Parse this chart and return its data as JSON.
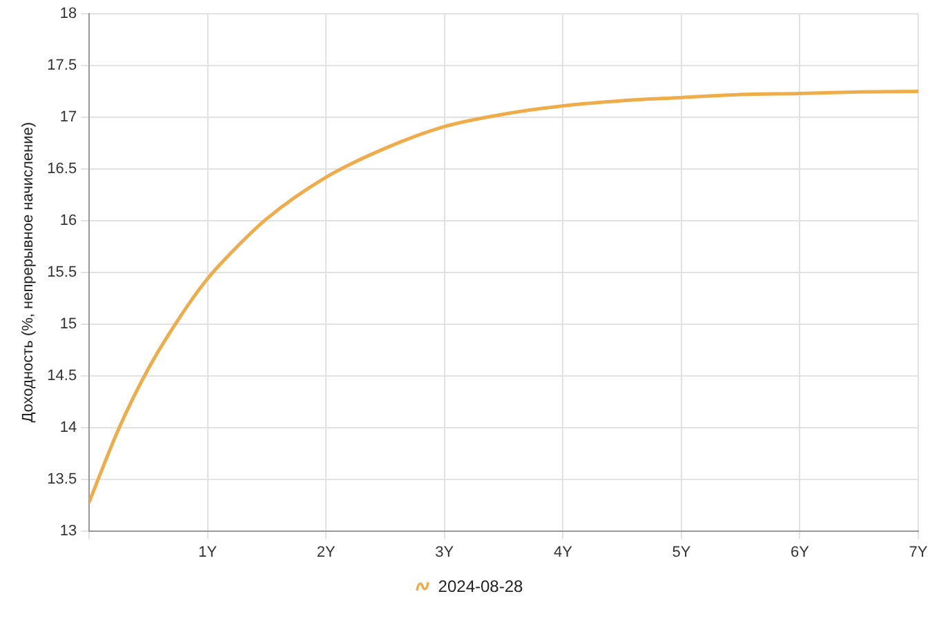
{
  "chart_data": {
    "type": "line",
    "ylabel": "Доходность (%, непрерывное начисление)",
    "x": [
      0,
      0.25,
      0.5,
      0.75,
      1,
      1.25,
      1.5,
      2,
      2.5,
      3,
      3.5,
      4,
      4.5,
      5,
      5.5,
      6,
      6.5,
      7
    ],
    "series": [
      {
        "name": "2024-08-28",
        "color": "#eead4a",
        "values": [
          13.28,
          13.99,
          14.57,
          15.04,
          15.44,
          15.75,
          16.02,
          16.42,
          16.7,
          16.91,
          17.03,
          17.11,
          17.16,
          17.19,
          17.22,
          17.23,
          17.245,
          17.25
        ]
      }
    ],
    "xlim": [
      0,
      7
    ],
    "xticks": [
      {
        "value": 0,
        "label": null
      },
      {
        "value": 1,
        "label": "1Y"
      },
      {
        "value": 2,
        "label": "2Y"
      },
      {
        "value": 3,
        "label": "3Y"
      },
      {
        "value": 4,
        "label": "4Y"
      },
      {
        "value": 5,
        "label": "5Y"
      },
      {
        "value": 6,
        "label": "6Y"
      },
      {
        "value": 7,
        "label": "7Y"
      }
    ],
    "ylim": [
      13,
      18
    ],
    "yticks": [
      13,
      13.5,
      14,
      14.5,
      15,
      15.5,
      16,
      16.5,
      17,
      17.5,
      18
    ],
    "grid": true,
    "legend": "bottom",
    "marker": "none",
    "line_style": "solid"
  }
}
